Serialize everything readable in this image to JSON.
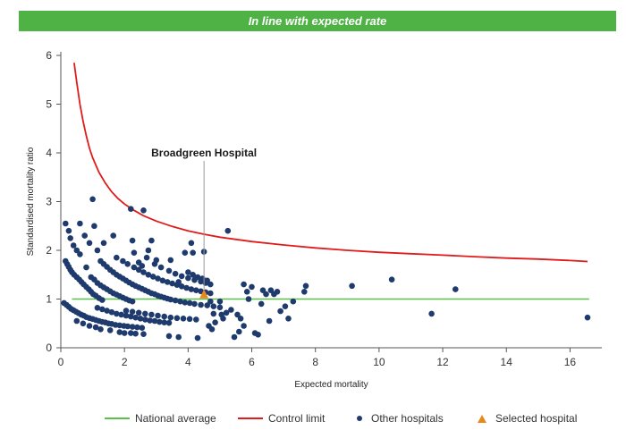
{
  "banner": {
    "title": "In line with expected rate"
  },
  "colors": {
    "banner_bg": "#4fb245",
    "national_average": "#5cbf4a",
    "control_limit": "#e01b1b",
    "other_hospitals": "#1f3b6e",
    "selected_hospital": "#e8891f",
    "annotation_line": "#999999",
    "axis": "#555555"
  },
  "legend": {
    "national_average": "National average",
    "control_limit": "Control limit",
    "other_hospitals": "Other hospitals",
    "selected_hospital": "Selected hospital"
  },
  "chart_data": {
    "type": "scatter",
    "title": "",
    "xlabel": "Expected mortality",
    "ylabel": "Standardised mortality ratio",
    "xlim": [
      0,
      17
    ],
    "ylim": [
      0,
      6
    ],
    "xticks": [
      0,
      2,
      4,
      6,
      8,
      10,
      12,
      14,
      16
    ],
    "yticks": [
      0,
      1,
      2,
      3,
      4,
      5,
      6
    ],
    "grid": false,
    "legend_position": "bottom",
    "national_average": 1,
    "control_limit": {
      "x": [
        0.42,
        0.5,
        0.6,
        0.7,
        0.8,
        0.9,
        1.0,
        1.2,
        1.4,
        1.6,
        1.8,
        2.0,
        2.3,
        2.6,
        3.0,
        3.5,
        4.0,
        4.5,
        5.0,
        6.0,
        7.0,
        8.0,
        9.0,
        10.0,
        11.0,
        12.0,
        13.0,
        14.0,
        15.0,
        16.0,
        16.55
      ],
      "y": [
        5.85,
        5.45,
        5.0,
        4.65,
        4.35,
        4.1,
        3.9,
        3.6,
        3.38,
        3.2,
        3.06,
        2.95,
        2.82,
        2.71,
        2.6,
        2.49,
        2.4,
        2.33,
        2.27,
        2.18,
        2.11,
        2.05,
        2.0,
        1.96,
        1.93,
        1.9,
        1.87,
        1.84,
        1.82,
        1.79,
        1.77
      ]
    },
    "selected_hospital": {
      "name": "Broadgreen Hospital",
      "x": 4.5,
      "y": 1.09
    },
    "series": [
      {
        "name": "Other hospitals",
        "points": [
          [
            0.15,
            2.55
          ],
          [
            0.25,
            2.4
          ],
          [
            0.3,
            2.25
          ],
          [
            0.4,
            2.1
          ],
          [
            0.5,
            2.0
          ],
          [
            0.6,
            2.55
          ],
          [
            0.6,
            1.92
          ],
          [
            0.75,
            2.3
          ],
          [
            0.9,
            2.15
          ],
          [
            1.0,
            3.05
          ],
          [
            1.05,
            2.5
          ],
          [
            1.15,
            2.0
          ],
          [
            1.35,
            2.15
          ],
          [
            1.65,
            2.3
          ],
          [
            2.2,
            2.85
          ],
          [
            2.6,
            2.82
          ],
          [
            2.25,
            2.2
          ],
          [
            2.3,
            1.95
          ],
          [
            2.75,
            2.0
          ],
          [
            2.85,
            2.2
          ],
          [
            3.0,
            1.8
          ],
          [
            3.45,
            1.8
          ],
          [
            3.9,
            1.95
          ],
          [
            4.1,
            2.15
          ],
          [
            4.15,
            1.95
          ],
          [
            4.5,
            1.97
          ],
          [
            5.25,
            2.4
          ],
          [
            0.15,
            1.78
          ],
          [
            0.2,
            1.72
          ],
          [
            0.25,
            1.66
          ],
          [
            0.3,
            1.6
          ],
          [
            0.35,
            1.55
          ],
          [
            0.42,
            1.5
          ],
          [
            0.5,
            1.45
          ],
          [
            0.58,
            1.4
          ],
          [
            0.65,
            1.35
          ],
          [
            0.72,
            1.3
          ],
          [
            0.8,
            1.25
          ],
          [
            0.88,
            1.2
          ],
          [
            0.95,
            1.15
          ],
          [
            1.02,
            1.1
          ],
          [
            1.1,
            1.07
          ],
          [
            1.2,
            1.02
          ],
          [
            1.3,
            0.98
          ],
          [
            0.8,
            1.65
          ],
          [
            0.95,
            1.45
          ],
          [
            1.05,
            1.4
          ],
          [
            1.15,
            1.33
          ],
          [
            1.25,
            1.28
          ],
          [
            1.35,
            1.24
          ],
          [
            1.45,
            1.2
          ],
          [
            1.55,
            1.16
          ],
          [
            1.65,
            1.12
          ],
          [
            1.75,
            1.09
          ],
          [
            1.85,
            1.06
          ],
          [
            1.95,
            1.03
          ],
          [
            2.05,
            1.0
          ],
          [
            2.15,
            0.97
          ],
          [
            2.25,
            0.95
          ],
          [
            1.25,
            1.78
          ],
          [
            1.35,
            1.72
          ],
          [
            1.45,
            1.66
          ],
          [
            1.55,
            1.6
          ],
          [
            1.65,
            1.55
          ],
          [
            1.75,
            1.5
          ],
          [
            1.85,
            1.46
          ],
          [
            1.95,
            1.42
          ],
          [
            2.05,
            1.38
          ],
          [
            2.15,
            1.34
          ],
          [
            2.25,
            1.3
          ],
          [
            2.35,
            1.27
          ],
          [
            2.45,
            1.24
          ],
          [
            2.55,
            1.21
          ],
          [
            2.65,
            1.18
          ],
          [
            2.75,
            1.15
          ],
          [
            2.85,
            1.12
          ],
          [
            2.95,
            1.1
          ],
          [
            3.05,
            1.07
          ],
          [
            3.15,
            1.05
          ],
          [
            3.25,
            1.03
          ],
          [
            3.35,
            1.01
          ],
          [
            3.45,
            0.99
          ],
          [
            3.6,
            0.97
          ],
          [
            3.75,
            0.95
          ],
          [
            3.9,
            0.93
          ],
          [
            4.05,
            0.92
          ],
          [
            4.2,
            0.9
          ],
          [
            4.4,
            0.88
          ],
          [
            4.6,
            0.87
          ],
          [
            4.8,
            0.85
          ],
          [
            5.0,
            0.83
          ],
          [
            1.75,
            1.85
          ],
          [
            1.95,
            1.78
          ],
          [
            2.1,
            1.72
          ],
          [
            2.3,
            1.65
          ],
          [
            2.45,
            1.6
          ],
          [
            2.6,
            1.55
          ],
          [
            2.75,
            1.5
          ],
          [
            2.9,
            1.46
          ],
          [
            3.05,
            1.42
          ],
          [
            3.2,
            1.38
          ],
          [
            3.35,
            1.35
          ],
          [
            3.5,
            1.32
          ],
          [
            3.65,
            1.29
          ],
          [
            3.8,
            1.26
          ],
          [
            3.95,
            1.23
          ],
          [
            4.1,
            1.2
          ],
          [
            4.25,
            1.18
          ],
          [
            4.4,
            1.16
          ],
          [
            4.55,
            1.14
          ],
          [
            4.7,
            1.12
          ],
          [
            2.45,
            1.75
          ],
          [
            2.55,
            1.68
          ],
          [
            2.7,
            1.85
          ],
          [
            2.95,
            1.72
          ],
          [
            3.15,
            1.65
          ],
          [
            3.4,
            1.58
          ],
          [
            3.6,
            1.52
          ],
          [
            3.8,
            1.47
          ],
          [
            4.0,
            1.43
          ],
          [
            4.2,
            1.39
          ],
          [
            4.4,
            1.36
          ],
          [
            4.55,
            1.33
          ],
          [
            4.7,
            1.3
          ],
          [
            3.7,
            1.35
          ],
          [
            4.0,
            1.55
          ],
          [
            4.15,
            1.5
          ],
          [
            4.3,
            1.45
          ],
          [
            4.45,
            1.42
          ],
          [
            4.6,
            1.38
          ],
          [
            0.1,
            0.92
          ],
          [
            0.18,
            0.88
          ],
          [
            0.25,
            0.84
          ],
          [
            0.32,
            0.8
          ],
          [
            0.4,
            0.77
          ],
          [
            0.48,
            0.74
          ],
          [
            0.56,
            0.71
          ],
          [
            0.64,
            0.68
          ],
          [
            0.72,
            0.66
          ],
          [
            0.8,
            0.63
          ],
          [
            0.9,
            0.61
          ],
          [
            1.0,
            0.59
          ],
          [
            1.1,
            0.57
          ],
          [
            1.2,
            0.55
          ],
          [
            1.3,
            0.53
          ],
          [
            1.4,
            0.52
          ],
          [
            1.5,
            0.5
          ],
          [
            1.6,
            0.49
          ],
          [
            1.72,
            0.47
          ],
          [
            1.85,
            0.46
          ],
          [
            1.98,
            0.45
          ],
          [
            2.1,
            0.44
          ],
          [
            2.25,
            0.43
          ],
          [
            2.4,
            0.42
          ],
          [
            2.55,
            0.41
          ],
          [
            1.15,
            0.82
          ],
          [
            1.3,
            0.79
          ],
          [
            1.45,
            0.76
          ],
          [
            1.6,
            0.73
          ],
          [
            1.75,
            0.7
          ],
          [
            1.9,
            0.68
          ],
          [
            2.05,
            0.66
          ],
          [
            2.2,
            0.64
          ],
          [
            2.35,
            0.62
          ],
          [
            2.5,
            0.6
          ],
          [
            2.65,
            0.58
          ],
          [
            2.8,
            0.56
          ],
          [
            2.95,
            0.55
          ],
          [
            3.1,
            0.53
          ],
          [
            3.25,
            0.52
          ],
          [
            3.4,
            0.51
          ],
          [
            2.05,
            0.76
          ],
          [
            2.25,
            0.74
          ],
          [
            2.45,
            0.72
          ],
          [
            2.65,
            0.7
          ],
          [
            2.85,
            0.68
          ],
          [
            3.05,
            0.66
          ],
          [
            3.25,
            0.64
          ],
          [
            3.45,
            0.62
          ],
          [
            3.65,
            0.61
          ],
          [
            3.85,
            0.6
          ],
          [
            4.05,
            0.59
          ],
          [
            4.25,
            0.58
          ],
          [
            0.5,
            0.55
          ],
          [
            0.7,
            0.5
          ],
          [
            0.9,
            0.45
          ],
          [
            1.1,
            0.42
          ],
          [
            1.25,
            0.38
          ],
          [
            1.55,
            0.36
          ],
          [
            1.85,
            0.32
          ],
          [
            2.0,
            0.3
          ],
          [
            2.2,
            0.3
          ],
          [
            2.35,
            0.29
          ],
          [
            2.6,
            0.28
          ],
          [
            3.4,
            0.24
          ],
          [
            3.7,
            0.22
          ],
          [
            4.3,
            0.2
          ],
          [
            4.7,
            0.95
          ],
          [
            4.8,
            0.7
          ],
          [
            4.85,
            0.52
          ],
          [
            5.0,
            0.95
          ],
          [
            5.05,
            0.68
          ],
          [
            5.1,
            0.6
          ],
          [
            4.65,
            0.45
          ],
          [
            4.75,
            0.38
          ],
          [
            5.2,
            0.72
          ],
          [
            5.35,
            0.78
          ],
          [
            5.45,
            0.22
          ],
          [
            5.55,
            0.68
          ],
          [
            5.6,
            0.33
          ],
          [
            5.65,
            0.6
          ],
          [
            5.75,
            0.45
          ],
          [
            5.75,
            1.3
          ],
          [
            5.85,
            1.15
          ],
          [
            5.9,
            1.0
          ],
          [
            6.0,
            1.25
          ],
          [
            6.1,
            0.3
          ],
          [
            6.2,
            0.27
          ],
          [
            6.3,
            0.9
          ],
          [
            6.35,
            1.18
          ],
          [
            6.45,
            1.1
          ],
          [
            6.55,
            0.55
          ],
          [
            6.6,
            1.18
          ],
          [
            6.7,
            1.1
          ],
          [
            6.8,
            1.15
          ],
          [
            6.9,
            0.75
          ],
          [
            7.05,
            0.85
          ],
          [
            7.15,
            0.6
          ],
          [
            7.3,
            0.95
          ],
          [
            7.65,
            1.15
          ],
          [
            7.7,
            1.27
          ],
          [
            9.15,
            1.27
          ],
          [
            10.4,
            1.4
          ],
          [
            11.65,
            0.7
          ],
          [
            12.4,
            1.2
          ],
          [
            16.55,
            0.62
          ]
        ]
      }
    ]
  }
}
